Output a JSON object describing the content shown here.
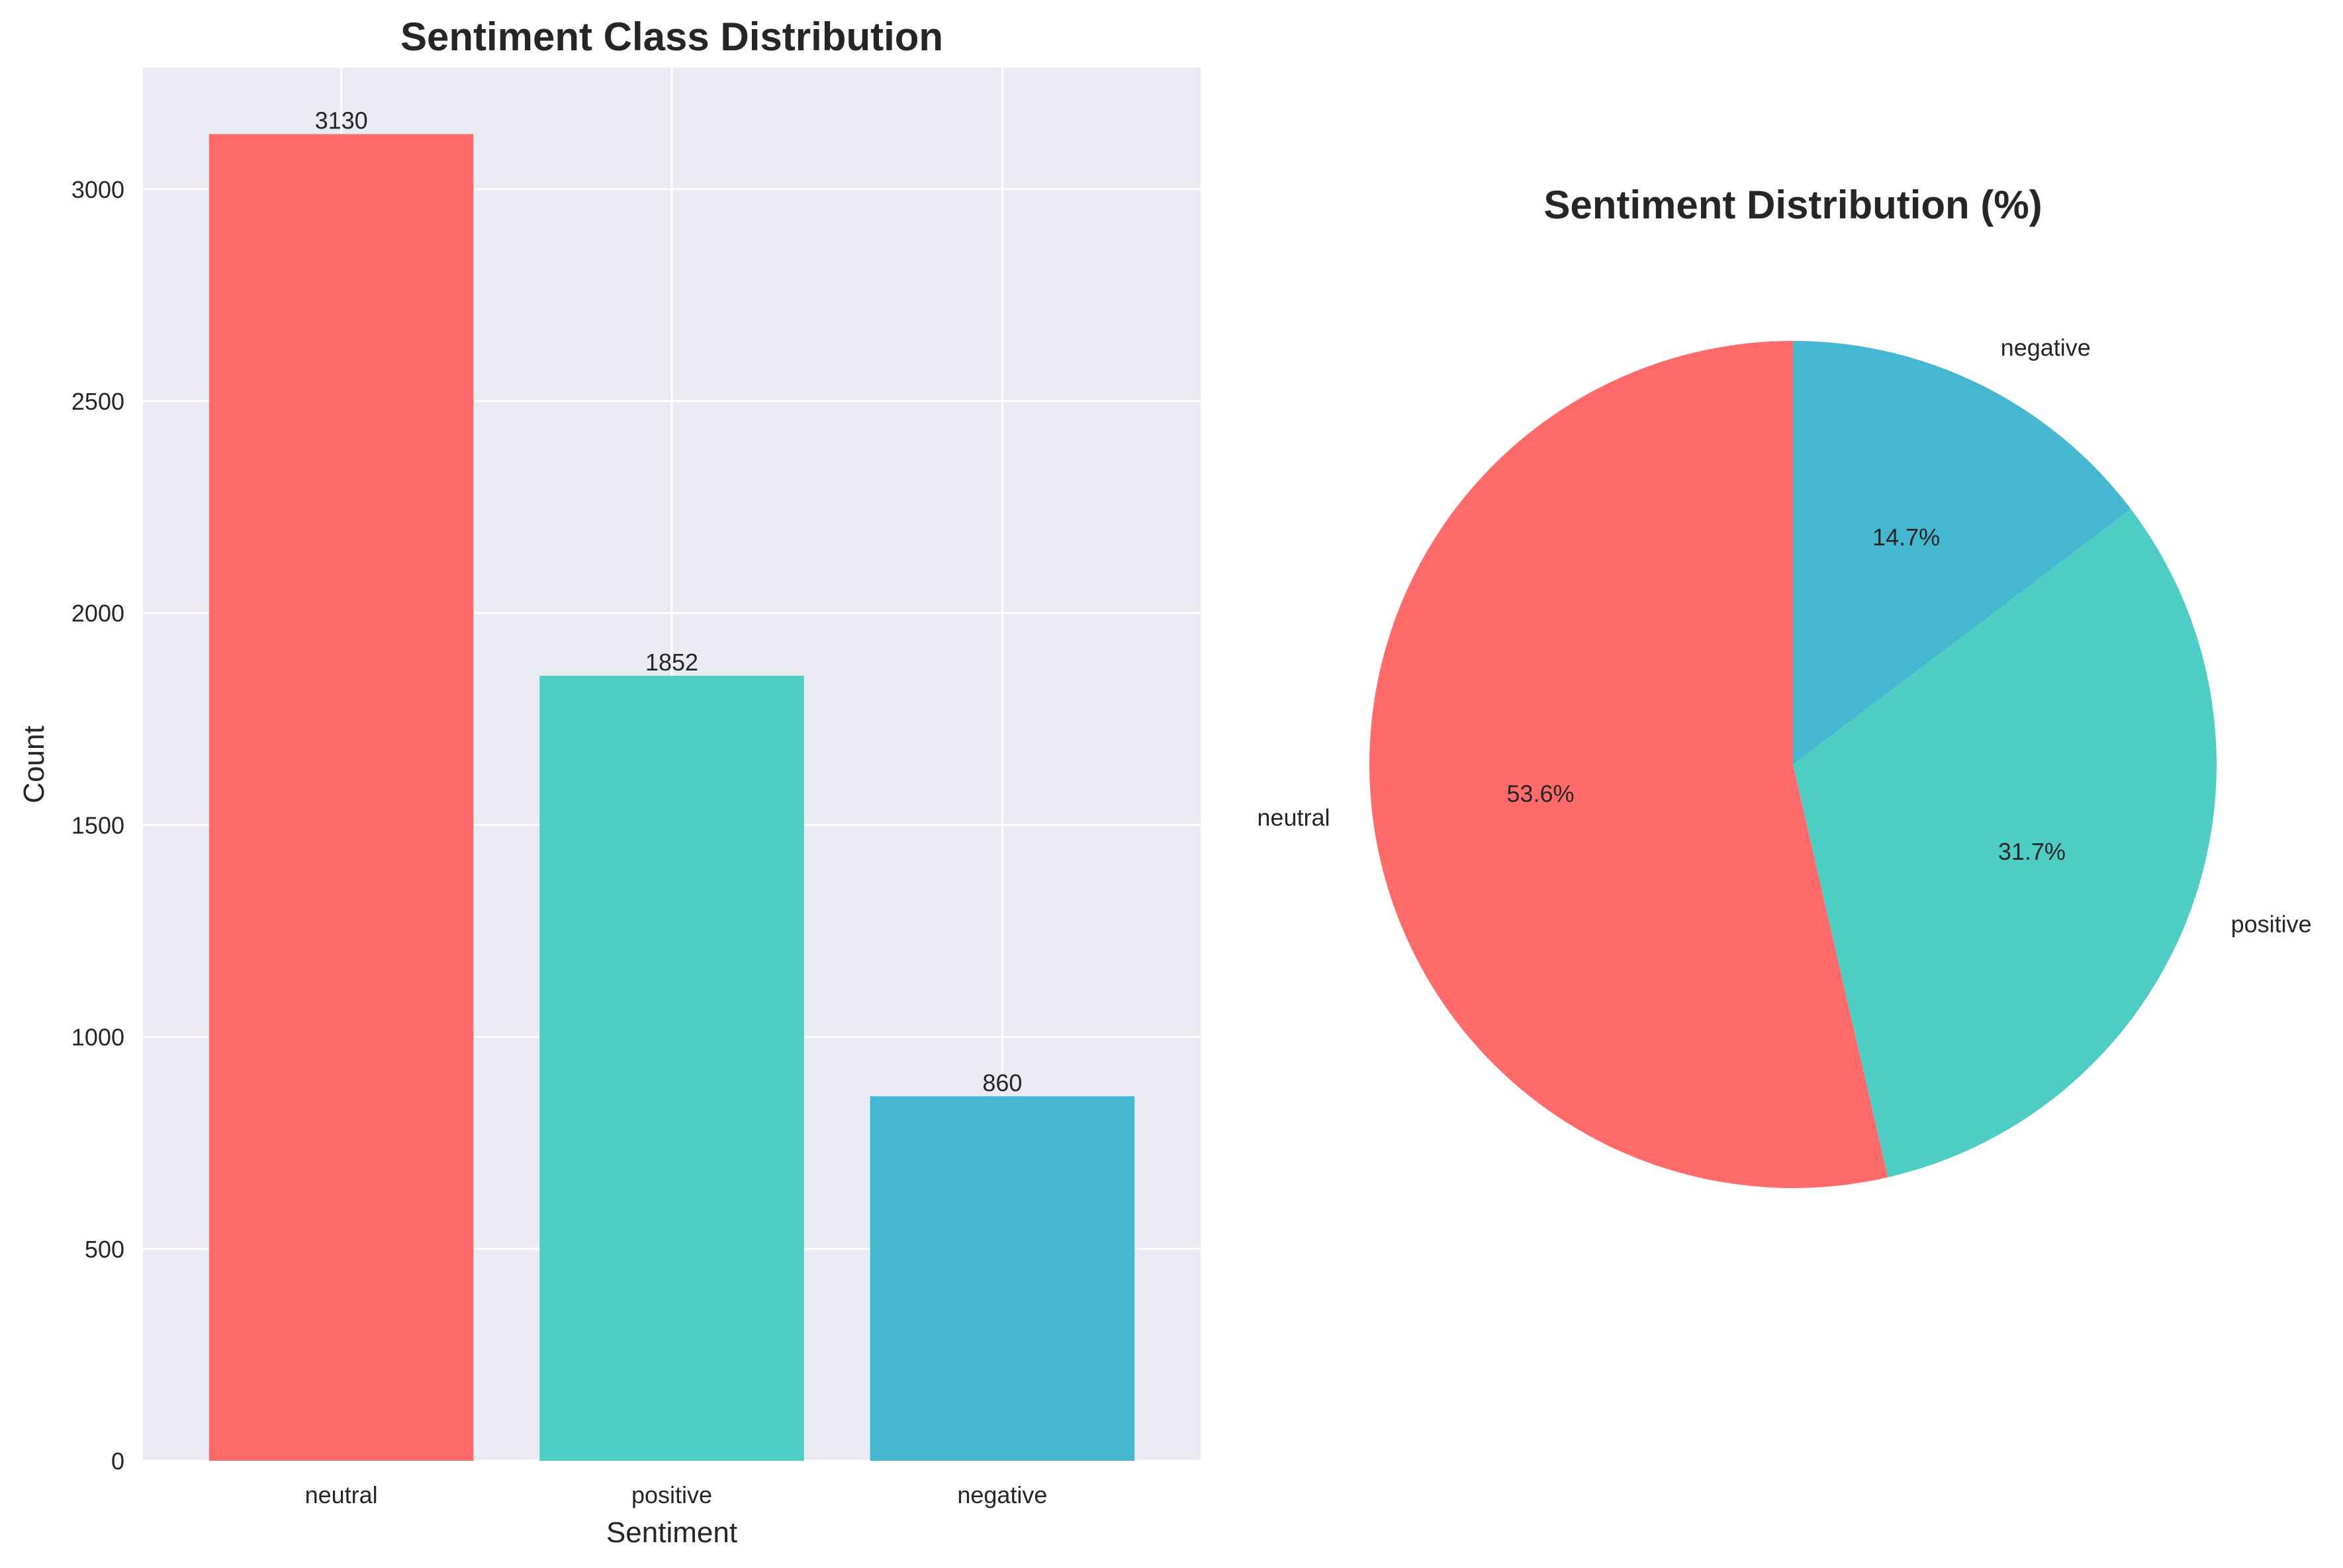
{
  "chart_data": [
    {
      "type": "bar",
      "title": "Sentiment Class Distribution",
      "xlabel": "Sentiment",
      "ylabel": "Count",
      "categories": [
        "neutral",
        "positive",
        "negative"
      ],
      "values": [
        3130,
        1852,
        860
      ],
      "value_labels": [
        "3130",
        "1852",
        "860"
      ],
      "colors": [
        "#FF6B6B",
        "#4ECDC4",
        "#45B7D1"
      ],
      "ylim": [
        0,
        3287
      ],
      "yticks": [
        0,
        500,
        1000,
        1500,
        2000,
        2500,
        3000
      ],
      "ytick_labels": [
        "0",
        "500",
        "1000",
        "1500",
        "2000",
        "2500",
        "3000"
      ],
      "grid": true,
      "background": "#EAEAF2"
    },
    {
      "type": "pie",
      "title": "Sentiment Distribution (%)",
      "labels": [
        "neutral",
        "positive",
        "negative"
      ],
      "values": [
        53.6,
        31.7,
        14.7
      ],
      "pct_labels": [
        "53.6%",
        "31.7%",
        "14.7%"
      ],
      "colors": [
        "#FF6B6B",
        "#4ECDC4",
        "#45B7D1"
      ],
      "start_angle_deg": 90,
      "direction": "counterclockwise"
    }
  ]
}
